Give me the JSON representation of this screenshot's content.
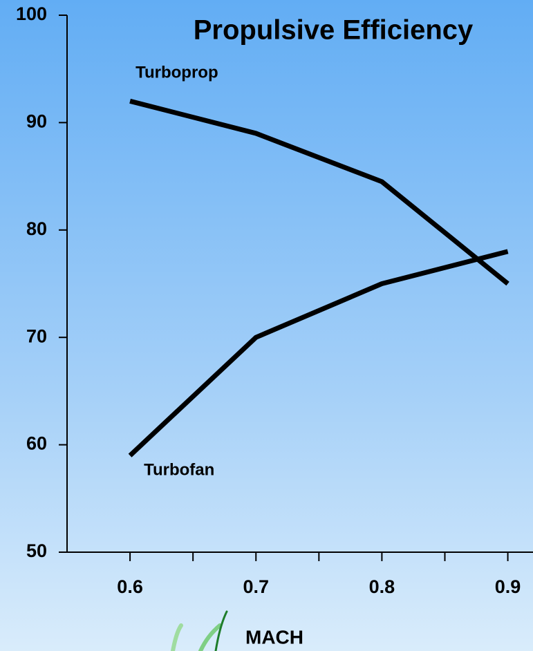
{
  "chart_data": {
    "type": "line",
    "title": "Propulsive Efficiency",
    "x_label": "MACH",
    "x": [
      0.6,
      0.7,
      0.8,
      0.9
    ],
    "series": [
      {
        "name": "Turboprop",
        "color": "#000000",
        "values": [
          92,
          89,
          84.5,
          75
        ]
      },
      {
        "name": "Turbofan",
        "color": "#000000",
        "values": [
          59,
          70,
          75,
          78
        ]
      }
    ],
    "xlim": [
      0.55,
      0.92
    ],
    "xticks": [
      0.6,
      0.7,
      0.8,
      0.9
    ],
    "xminorticks": [
      0.65,
      0.75,
      0.85
    ],
    "ylim": [
      50,
      100
    ],
    "yticks": [
      50,
      60,
      70,
      80,
      90,
      100
    ],
    "grid": false
  }
}
